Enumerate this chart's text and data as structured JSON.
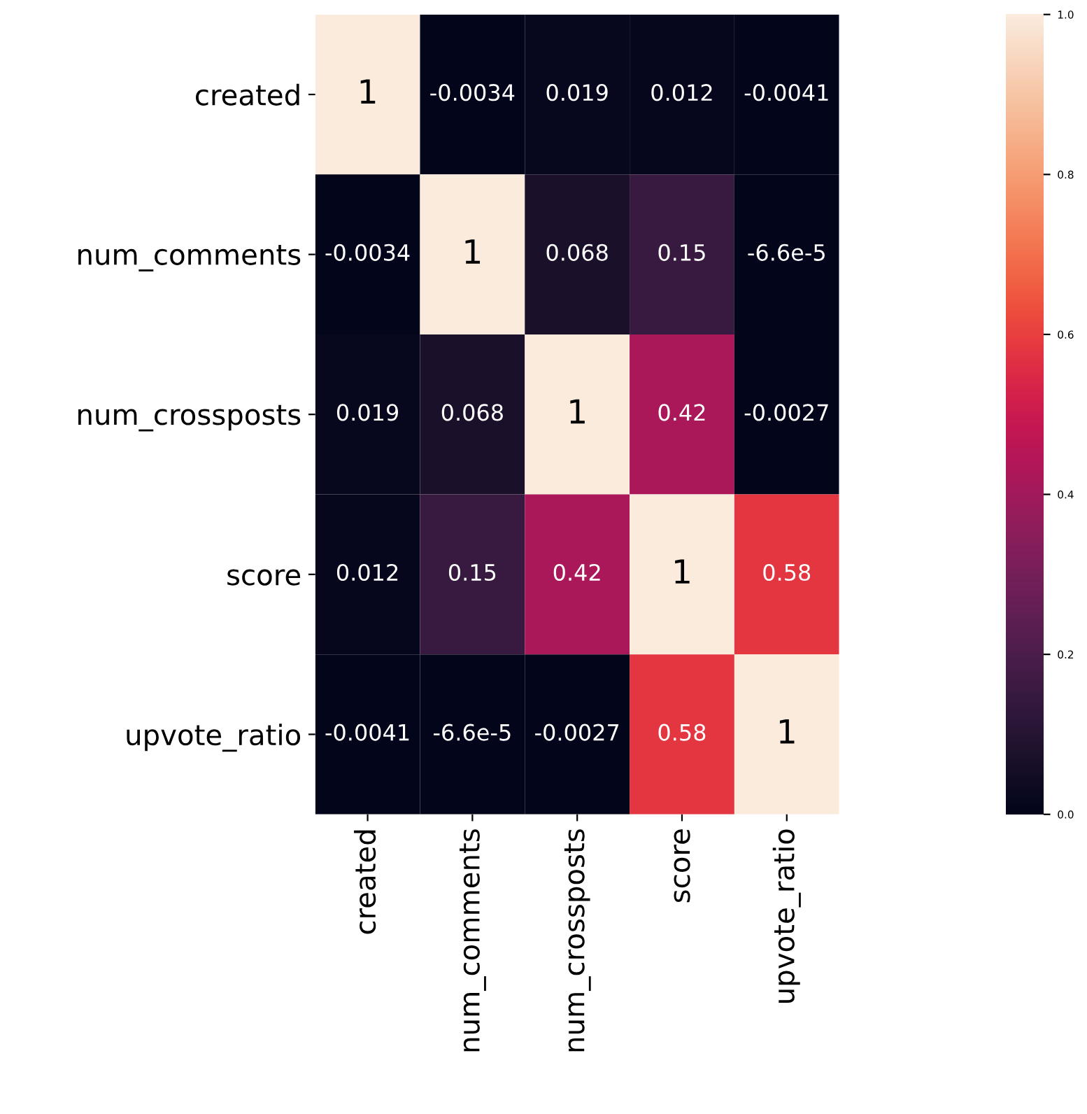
{
  "chart_data": {
    "type": "heatmap",
    "categories": [
      "created",
      "num_comments",
      "num_crossposts",
      "score",
      "upvote_ratio"
    ],
    "y_categories": [
      "created",
      "num_comments",
      "num_crossposts",
      "score",
      "upvote_ratio"
    ],
    "cells": [
      [
        1,
        -0.0034,
        0.019,
        0.012,
        -0.0041
      ],
      [
        -0.0034,
        1,
        0.068,
        0.15,
        -6.6e-05
      ],
      [
        0.019,
        0.068,
        1,
        0.42,
        -0.0027
      ],
      [
        0.012,
        0.15,
        0.42,
        1,
        0.58
      ],
      [
        -0.0041,
        -6.6e-05,
        -0.0027,
        0.58,
        1
      ]
    ],
    "cell_labels": [
      [
        "1",
        "-0.0034",
        "0.019",
        "0.012",
        "-0.0041"
      ],
      [
        "-0.0034",
        "1",
        "0.068",
        "0.15",
        "-6.6e-5"
      ],
      [
        "0.019",
        "0.068",
        "1",
        "0.42",
        "-0.0027"
      ],
      [
        "0.012",
        "0.15",
        "0.42",
        "1",
        "0.58"
      ],
      [
        "-0.0041",
        "-6.6e-5",
        "-0.0027",
        "0.58",
        "1"
      ]
    ],
    "clim": [
      0,
      1
    ],
    "cticks": [
      {
        "value": 0,
        "label": "0.0"
      },
      {
        "value": 0.2,
        "label": "0.2"
      },
      {
        "value": 0.4,
        "label": "0.4"
      },
      {
        "value": 0.6,
        "label": "0.6"
      },
      {
        "value": 0.8,
        "label": "0.8"
      },
      {
        "value": 1,
        "label": "1.0"
      }
    ]
  }
}
